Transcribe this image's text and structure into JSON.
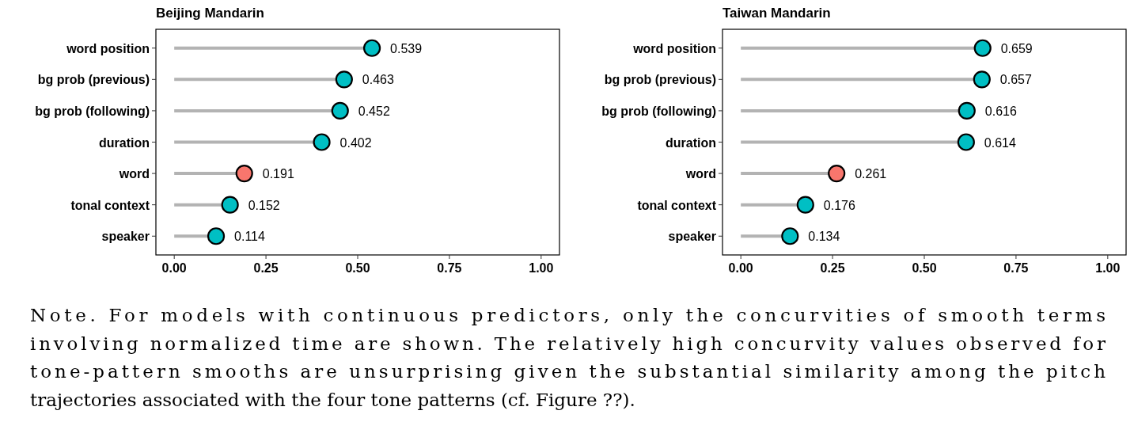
{
  "chart_data": [
    {
      "type": "lollipop",
      "title": "Beijing Mandarin",
      "categories": [
        "word position",
        "bg prob (previous)",
        "bg prob (following)",
        "duration",
        "word",
        "tonal context",
        "speaker"
      ],
      "values": [
        0.539,
        0.463,
        0.452,
        0.402,
        0.191,
        0.152,
        0.114
      ],
      "colors": [
        "#00bfc4",
        "#00bfc4",
        "#00bfc4",
        "#00bfc4",
        "#f8766d",
        "#00bfc4",
        "#00bfc4"
      ],
      "orientation": "horizontal",
      "xlim": [
        -0.05,
        1.05
      ],
      "xticks": [
        {
          "value": 0,
          "label": "0.00"
        },
        {
          "value": 0.25,
          "label": "0.25"
        },
        {
          "value": 0.5,
          "label": "0.50"
        },
        {
          "value": 0.75,
          "label": "0.75"
        },
        {
          "value": 1,
          "label": "1.00"
        }
      ],
      "data_labels": true,
      "marker": "circle",
      "grid": false
    },
    {
      "type": "lollipop",
      "title": "Taiwan Mandarin",
      "categories": [
        "word position",
        "bg prob (previous)",
        "bg prob (following)",
        "duration",
        "word",
        "tonal context",
        "speaker"
      ],
      "values": [
        0.659,
        0.657,
        0.616,
        0.614,
        0.261,
        0.176,
        0.134
      ],
      "colors": [
        "#00bfc4",
        "#00bfc4",
        "#00bfc4",
        "#00bfc4",
        "#f8766d",
        "#00bfc4",
        "#00bfc4"
      ],
      "orientation": "horizontal",
      "xlim": [
        -0.05,
        1.05
      ],
      "xticks": [
        {
          "value": 0,
          "label": "0.00"
        },
        {
          "value": 0.25,
          "label": "0.25"
        },
        {
          "value": 0.5,
          "label": "0.50"
        },
        {
          "value": 0.75,
          "label": "0.75"
        },
        {
          "value": 1,
          "label": "1.00"
        }
      ],
      "data_labels": true,
      "marker": "circle",
      "grid": false
    },
    {
      "type": "other",
      "annotations": [
        "Note.  For models with continuous predictors, only the concurvities of smooth terms",
        "involving normalized time are shown. The relatively high concurvity values observed for",
        "tone-pattern smooths are unsurprising given the substantial similarity among the pitch",
        "trajectories associated with the four tone patterns (cf. Figure ??)."
      ]
    }
  ]
}
